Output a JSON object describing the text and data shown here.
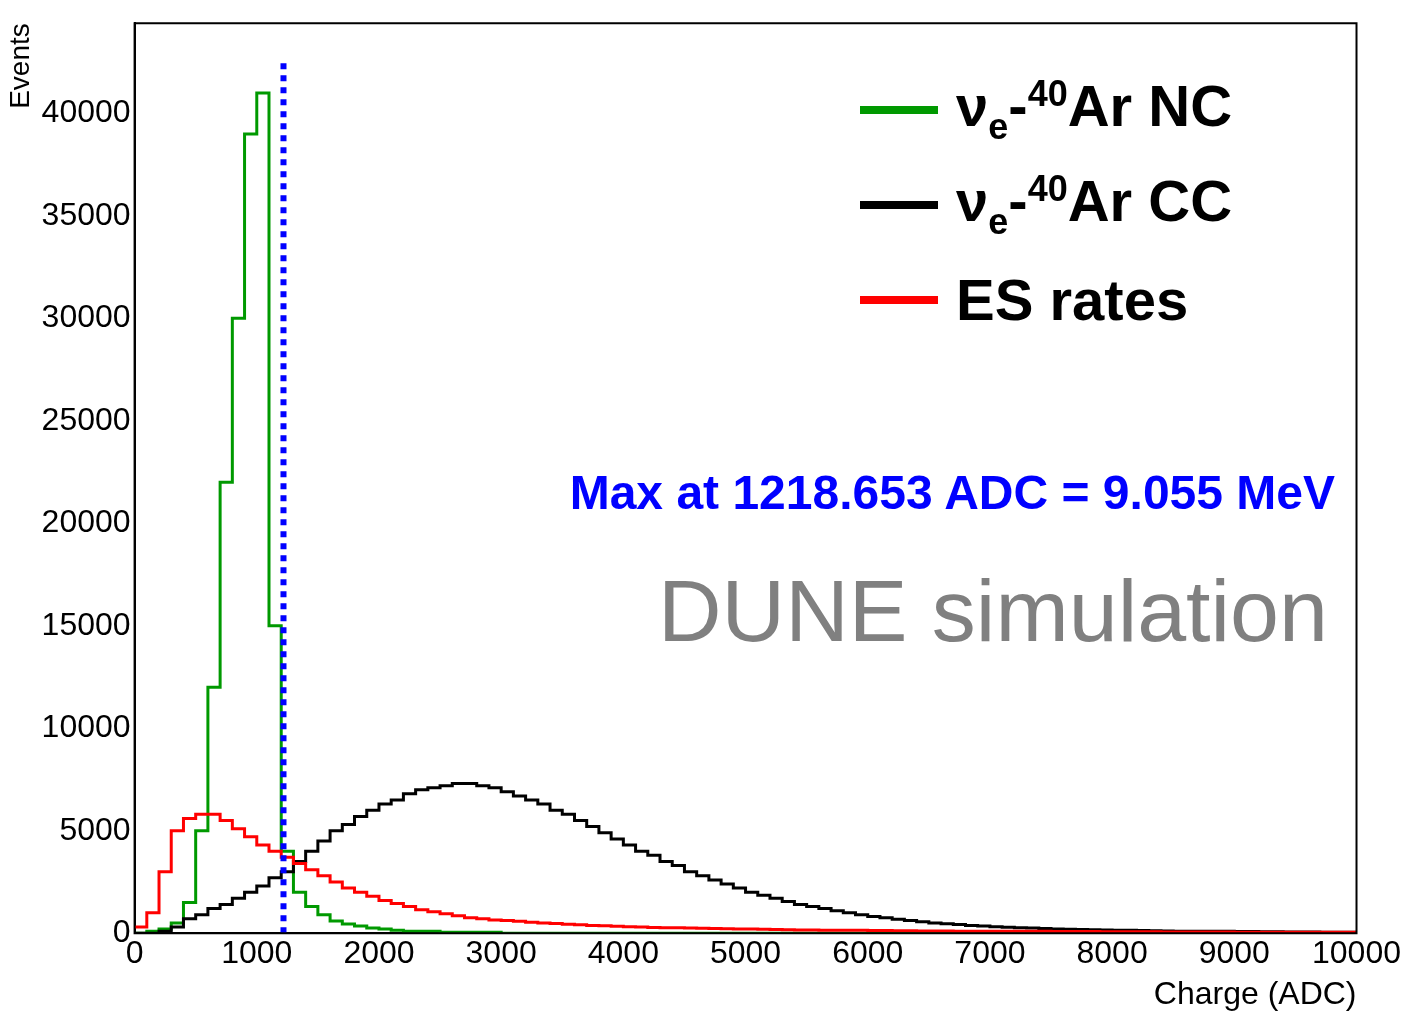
{
  "chart_data": {
    "type": "histogram",
    "xlabel": "Charge (ADC)",
    "ylabel": "Events",
    "bins": [
      0,
      100,
      200,
      300,
      400,
      500,
      600,
      700,
      800,
      900,
      1000,
      1100,
      1200,
      1300,
      1400,
      1500,
      1600,
      1700,
      1800,
      1900,
      2000,
      2100,
      2200,
      2300,
      2400,
      2500,
      2600,
      2700,
      2800,
      2900,
      3000,
      3100,
      3200,
      3300,
      3400,
      3500,
      3600,
      3700,
      3800,
      3900,
      4000,
      4100,
      4200,
      4300,
      4400,
      4500,
      4600,
      4700,
      4800,
      4900,
      5000,
      5100,
      5200,
      5300,
      5400,
      5500,
      5600,
      5700,
      5800,
      5900,
      6000,
      6100,
      6200,
      6300,
      6400,
      6500,
      6600,
      6700,
      6800,
      6900,
      7000,
      7100,
      7200,
      7300,
      7400,
      7500,
      7600,
      7700,
      7800,
      7900,
      8000,
      8100,
      8200,
      8300,
      8400,
      8500,
      8600,
      8700,
      8800,
      8900,
      9000,
      9100,
      9200,
      9300,
      9400,
      9500,
      9600,
      9700,
      9800,
      9900,
      10000
    ],
    "series": [
      {
        "name": "ν$_{e}$-$^{40}$Ar NC",
        "color": "#009900",
        "values": [
          0,
          100,
          200,
          500,
          1500,
          5000,
          12000,
          22000,
          30000,
          39000,
          41000,
          15000,
          4000,
          2000,
          1300,
          900,
          600,
          450,
          350,
          250,
          200,
          150,
          100,
          100,
          100,
          50,
          50,
          50,
          50,
          50,
          0,
          0,
          0,
          0,
          0,
          0,
          0,
          0,
          0,
          0,
          0,
          0,
          0,
          0,
          0,
          0,
          0,
          0,
          0,
          0,
          0,
          0,
          0,
          0,
          0,
          0,
          0,
          0,
          0,
          0,
          0,
          0,
          0,
          0,
          0,
          0,
          0,
          0,
          0,
          0,
          0,
          0,
          0,
          0,
          0,
          0,
          0,
          0,
          0,
          0,
          0,
          0,
          0,
          0,
          0,
          0,
          0,
          0,
          0,
          0,
          0,
          0,
          0,
          0,
          0,
          0,
          0,
          0,
          0,
          0
        ]
      },
      {
        "name": "ν$_{e}$-$^{40}$Ar CC",
        "color": "#000000",
        "values": [
          0,
          0,
          100,
          300,
          700,
          900,
          1200,
          1400,
          1700,
          2000,
          2300,
          2700,
          3000,
          3500,
          4000,
          4500,
          5000,
          5300,
          5700,
          6000,
          6300,
          6500,
          6800,
          7000,
          7100,
          7200,
          7300,
          7300,
          7200,
          7100,
          6900,
          6700,
          6500,
          6300,
          6000,
          5800,
          5500,
          5200,
          4900,
          4600,
          4300,
          4000,
          3800,
          3500,
          3300,
          3000,
          2800,
          2600,
          2400,
          2200,
          2000,
          1850,
          1700,
          1550,
          1400,
          1300,
          1200,
          1100,
          1000,
          900,
          820,
          750,
          680,
          620,
          560,
          500,
          460,
          420,
          380,
          350,
          320,
          290,
          270,
          250,
          230,
          210,
          190,
          180,
          170,
          160,
          150,
          140,
          130,
          120,
          110,
          100,
          100,
          100,
          90,
          90,
          80,
          80,
          70,
          70,
          60,
          60,
          60,
          50,
          50,
          50
        ]
      },
      {
        "name": "ES rates",
        "color": "#ff0000",
        "values": [
          300,
          1000,
          3000,
          5000,
          5600,
          5800,
          5800,
          5500,
          5100,
          4700,
          4300,
          4000,
          3700,
          3400,
          3100,
          2800,
          2500,
          2200,
          2000,
          1800,
          1600,
          1450,
          1300,
          1150,
          1050,
          950,
          850,
          750,
          700,
          650,
          620,
          580,
          540,
          500,
          470,
          440,
          410,
          380,
          360,
          340,
          320,
          300,
          280,
          270,
          260,
          250,
          240,
          230,
          220,
          210,
          200,
          190,
          180,
          170,
          160,
          160,
          150,
          150,
          140,
          140,
          130,
          130,
          120,
          120,
          110,
          110,
          110,
          100,
          100,
          100,
          100,
          90,
          90,
          90,
          90,
          80,
          80,
          80,
          80,
          70,
          70,
          70,
          70,
          70,
          60,
          60,
          60,
          60,
          60,
          60,
          50,
          50,
          50,
          50,
          50,
          50,
          50,
          50,
          50,
          50
        ]
      }
    ],
    "xlim": [
      0,
      10000
    ],
    "xticks": [
      0,
      1000,
      2000,
      3000,
      4000,
      5000,
      6000,
      7000,
      8000,
      9000,
      10000
    ],
    "ylim": [
      0,
      44400
    ],
    "yticks": [
      0,
      5000,
      10000,
      15000,
      20000,
      25000,
      30000,
      35000,
      40000
    ],
    "ref_lines": [
      {
        "axis": "x",
        "value": 1218.653,
        "color": "#0000ff",
        "line_style": "dotted"
      }
    ],
    "annotations": [
      "Max at 1218.653 ADC = 9.055 MeV",
      "DUNE simulation"
    ],
    "legend": "top right",
    "grid": false
  }
}
